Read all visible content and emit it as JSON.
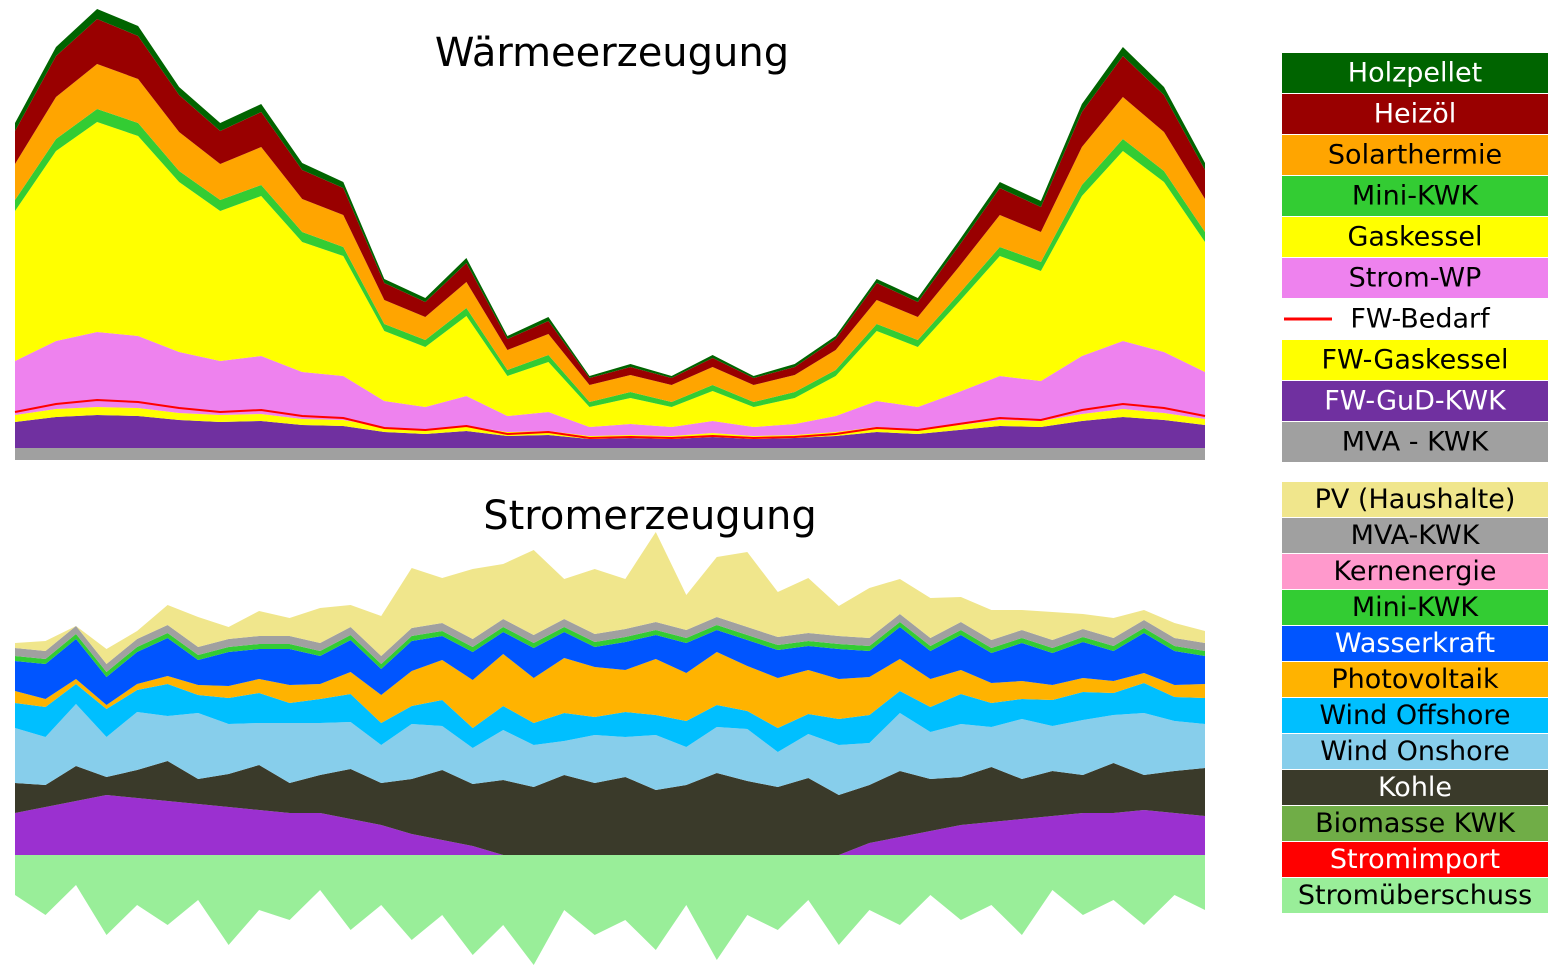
{
  "chart_data": [
    {
      "type": "area",
      "title": "Wärmeerzeugung",
      "ylim": [
        0,
        452
      ],
      "series": [
        {
          "name": "Holzpellet",
          "color": "#006400",
          "values": [
            8,
            9,
            10,
            10,
            8,
            8,
            8,
            7,
            6,
            4,
            4,
            5,
            3,
            4,
            2,
            3,
            2,
            3,
            2,
            3,
            3,
            4,
            4,
            5,
            6,
            6,
            8,
            9,
            8,
            7
          ]
        },
        {
          "name": "Heizöl",
          "color": "#990000",
          "values": [
            33,
            41,
            45,
            43,
            37,
            33,
            35,
            29,
            27,
            17,
            15,
            19,
            11,
            13,
            7,
            8,
            7,
            9,
            7,
            8,
            11,
            17,
            15,
            21,
            27,
            25,
            35,
            41,
            37,
            29
          ]
        },
        {
          "name": "Solarthermie",
          "color": "#ffa500",
          "values": [
            36,
            42,
            45,
            44,
            39,
            36,
            38,
            33,
            32,
            24,
            23,
            26,
            20,
            21,
            17,
            17,
            17,
            18,
            17,
            17,
            20,
            24,
            23,
            27,
            32,
            30,
            38,
            42,
            39,
            33
          ]
        },
        {
          "name": "Mini-KWK",
          "color": "#33cc33",
          "values": [
            11,
            12,
            13,
            13,
            11,
            11,
            11,
            10,
            9,
            7,
            7,
            8,
            6,
            7,
            5,
            6,
            5,
            6,
            5,
            6,
            6,
            7,
            7,
            8,
            9,
            9,
            11,
            12,
            11,
            10
          ]
        },
        {
          "name": "Gaskessel",
          "color": "#ffff00",
          "values": [
            150,
            190,
            210,
            200,
            170,
            150,
            160,
            130,
            120,
            70,
            60,
            80,
            40,
            50,
            20,
            26,
            20,
            30,
            20,
            26,
            40,
            70,
            60,
            90,
            120,
            110,
            160,
            190,
            170,
            130
          ]
        },
        {
          "name": "Strom-WP",
          "color": "#ee82ee",
          "values": [
            54,
            68,
            75,
            72,
            61,
            54,
            58,
            47,
            44,
            26,
            23,
            30,
            16,
            19,
            9,
            11,
            9,
            12,
            9,
            11,
            16,
            26,
            23,
            33,
            44,
            40,
            58,
            68,
            61,
            47
          ]
        },
        {
          "name": "FW-Bedarf",
          "color": "#ff0000",
          "style": "line",
          "values": [
            48,
            56,
            60,
            58,
            52,
            48,
            50,
            44,
            42,
            32,
            30,
            34,
            26,
            28,
            22,
            23,
            22,
            24,
            22,
            23,
            26,
            32,
            30,
            36,
            42,
            40,
            50,
            56,
            52,
            44
          ]
        },
        {
          "name": "FW-Gaskessel",
          "color": "#ffff00",
          "values": [
            7,
            8,
            8,
            8,
            7,
            7,
            7,
            6,
            6,
            5,
            4,
            5,
            4,
            4,
            3,
            3,
            3,
            4,
            3,
            3,
            4,
            5,
            4,
            5,
            6,
            6,
            7,
            8,
            7,
            6
          ]
        },
        {
          "name": "FW-GuD-KWK",
          "color": "#7030a0",
          "values": [
            26,
            31,
            33,
            32,
            28,
            26,
            27,
            23,
            22,
            16,
            14,
            17,
            12,
            13,
            9,
            10,
            9,
            11,
            9,
            10,
            12,
            16,
            14,
            18,
            22,
            21,
            27,
            31,
            28,
            23
          ]
        },
        {
          "name": "MVA - KWK",
          "color": "#a0a0a0",
          "values": [
            12,
            12,
            12,
            12,
            12,
            12,
            12,
            12,
            12,
            12,
            12,
            12,
            12,
            12,
            12,
            12,
            12,
            12,
            12,
            12,
            12,
            12,
            12,
            12,
            12,
            12,
            12,
            12,
            12,
            12
          ]
        }
      ]
    },
    {
      "type": "area",
      "title": "Stromerzeugung",
      "ylim": [
        -115,
        310
      ],
      "series": [
        {
          "name": "PV (Haushalte)",
          "color": "#f0e68c",
          "values": [
            5,
            10,
            0,
            15,
            8,
            20,
            30,
            12,
            25,
            18,
            35,
            22,
            40,
            60,
            45,
            70,
            55,
            85,
            40,
            65,
            50,
            90,
            35,
            60,
            75,
            45,
            55,
            30,
            50,
            35,
            40,
            25,
            30,
            20,
            28,
            15,
            20,
            10,
            15,
            12
          ]
        },
        {
          "name": "MVA-KWK",
          "color": "#a0a0a0",
          "values": [
            8,
            8,
            8,
            8,
            8,
            8,
            8,
            8,
            8,
            8,
            8,
            8,
            8,
            8,
            8,
            8,
            8,
            8,
            8,
            8,
            8,
            8,
            8,
            8,
            8,
            8,
            8,
            8,
            8,
            8,
            8,
            8,
            8,
            8,
            8,
            8,
            8,
            8,
            8,
            8
          ]
        },
        {
          "name": "Kernenergie",
          "color": "#ff99cc",
          "values": [
            0,
            0,
            0,
            0,
            0,
            0,
            0,
            0,
            0,
            0,
            0,
            0,
            0,
            0,
            0,
            0,
            0,
            0,
            0,
            0,
            0,
            0,
            0,
            0,
            0,
            0,
            0,
            0,
            0,
            0,
            0,
            0,
            0,
            0,
            0,
            0,
            0,
            0,
            0,
            0
          ]
        },
        {
          "name": "Mini-KWK",
          "color": "#33cc33",
          "values": [
            5,
            5,
            5,
            5,
            5,
            5,
            5,
            5,
            5,
            5,
            5,
            5,
            5,
            5,
            5,
            5,
            5,
            5,
            5,
            5,
            5,
            5,
            5,
            5,
            5,
            5,
            5,
            5,
            5,
            5,
            5,
            5,
            5,
            5,
            5,
            5,
            5,
            5,
            5,
            5
          ]
        },
        {
          "name": "Wasserkraft",
          "color": "#0055ff",
          "values": [
            30,
            35,
            40,
            28,
            32,
            38,
            25,
            34,
            30,
            36,
            28,
            32,
            26,
            30,
            24,
            28,
            22,
            30,
            26,
            20,
            28,
            24,
            30,
            22,
            26,
            28,
            24,
            30,
            26,
            32,
            28,
            35,
            30,
            38,
            32,
            36,
            30,
            40,
            34,
            28
          ]
        },
        {
          "name": "Photovoltaik",
          "color": "#ffb300",
          "values": [
            12,
            8,
            5,
            4,
            6,
            8,
            10,
            12,
            14,
            18,
            15,
            22,
            28,
            35,
            40,
            48,
            52,
            45,
            55,
            50,
            42,
            56,
            48,
            53,
            45,
            50,
            44,
            40,
            38,
            32,
            28,
            24,
            20,
            18,
            15,
            14,
            12,
            10,
            12,
            14
          ]
        },
        {
          "name": "Wind Offshore",
          "color": "#00bfff",
          "values": [
            25,
            30,
            20,
            28,
            22,
            32,
            18,
            26,
            30,
            20,
            24,
            28,
            22,
            18,
            26,
            20,
            24,
            22,
            28,
            18,
            25,
            20,
            26,
            22,
            18,
            24,
            20,
            26,
            28,
            22,
            25,
            30,
            24,
            20,
            26,
            28,
            22,
            30,
            24,
            26
          ]
        },
        {
          "name": "Wind Onshore",
          "color": "#87ceeb",
          "values": [
            55,
            48,
            62,
            40,
            58,
            45,
            66,
            50,
            42,
            60,
            52,
            47,
            38,
            55,
            44,
            36,
            50,
            42,
            34,
            48,
            40,
            55,
            38,
            46,
            52,
            35,
            44,
            50,
            42,
            58,
            47,
            53,
            40,
            60,
            45,
            55,
            48,
            62,
            50,
            44
          ]
        },
        {
          "name": "Kohle",
          "color": "#3a3a2a",
          "values": [
            30,
            22,
            35,
            18,
            28,
            40,
            25,
            33,
            45,
            30,
            38,
            50,
            42,
            55,
            70,
            62,
            75,
            68,
            80,
            72,
            78,
            65,
            70,
            82,
            74,
            68,
            77,
            60,
            58,
            66,
            52,
            48,
            55,
            40,
            45,
            38,
            50,
            35,
            42,
            48
          ]
        },
        {
          "name": "Biomasse KWK",
          "color": "#70ad47",
          "values": [
            0,
            0,
            0,
            0,
            0,
            0,
            0,
            0,
            0,
            0,
            0,
            0,
            0,
            0,
            0,
            0,
            0,
            0,
            0,
            0,
            0,
            0,
            0,
            0,
            0,
            0,
            0,
            0,
            0,
            0,
            0,
            0,
            0,
            0,
            0,
            0,
            0,
            0,
            0,
            0
          ]
        },
        {
          "name": "Stromimport",
          "color": "#ff0000",
          "values": [
            0,
            0,
            0,
            0,
            0,
            0,
            0,
            0,
            0,
            0,
            0,
            0,
            0,
            0,
            0,
            0,
            0,
            0,
            0,
            0,
            0,
            0,
            0,
            0,
            0,
            0,
            0,
            0,
            0,
            0,
            0,
            0,
            0,
            0,
            0,
            0,
            0,
            0,
            0,
            0
          ]
        },
        {
          "name": "Stromüberschuss",
          "color": "#99ee99",
          "values": [
            -40,
            -60,
            -30,
            -80,
            -50,
            -70,
            -45,
            -90,
            -55,
            -65,
            -35,
            -75,
            -50,
            -85,
            -60,
            -100,
            -70,
            -110,
            -55,
            -80,
            -65,
            -95,
            -50,
            -105,
            -60,
            -75,
            -45,
            -90,
            -55,
            -70,
            -40,
            -65,
            -50,
            -80,
            -35,
            -60,
            -45,
            -70,
            -40,
            -55
          ]
        },
        {
          "color": "#9b30d0",
          "values": [
            42,
            48,
            54,
            60,
            57,
            54,
            51,
            48,
            45,
            42,
            42,
            36,
            30,
            21,
            15,
            9,
            0,
            0,
            0,
            0,
            0,
            0,
            0,
            0,
            0,
            0,
            0,
            0,
            12,
            18,
            24,
            30,
            33,
            36,
            39,
            42,
            42,
            45,
            42,
            39
          ]
        }
      ]
    }
  ]
}
